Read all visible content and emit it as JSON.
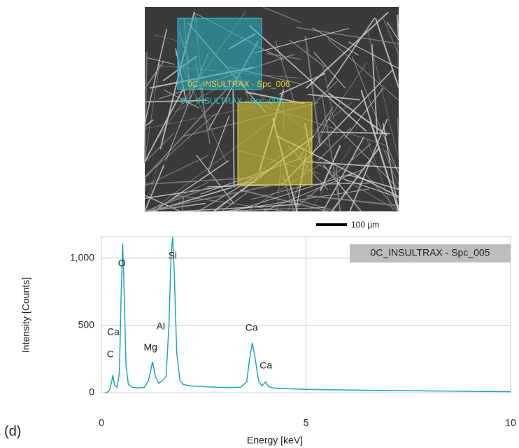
{
  "panel_label": "(d)",
  "image": {
    "spot_labels": [
      "0C_INSULTRAX - Spc_006",
      "0C_INSULTRAX - Spc_005"
    ],
    "scale_bar": "100 µm"
  },
  "chart_data": {
    "type": "line",
    "xlabel": "Energy [keV]",
    "ylabel": "Intensity [Counts]",
    "legend_box": "0C_INSULTRAX - Spc_005",
    "xlim": [
      0,
      10
    ],
    "xticks": [
      0,
      5,
      10
    ],
    "ylim": [
      0,
      1160
    ],
    "yticks": [
      0,
      500,
      {
        "value": 1000,
        "label": "1,000"
      }
    ],
    "grid": true,
    "x": [
      0.1,
      0.15,
      0.2,
      0.25,
      0.28,
      0.32,
      0.38,
      0.44,
      0.48,
      0.52,
      0.56,
      0.6,
      0.66,
      0.75,
      0.9,
      1.05,
      1.15,
      1.25,
      1.32,
      1.4,
      1.49,
      1.58,
      1.65,
      1.7,
      1.74,
      1.78,
      1.84,
      1.92,
      2.0,
      2.2,
      2.5,
      2.8,
      3.1,
      3.4,
      3.55,
      3.62,
      3.69,
      3.76,
      3.84,
      3.92,
      4.01,
      4.08,
      4.2,
      4.5,
      5.0,
      5.5,
      6.0,
      6.5,
      7.0,
      7.5,
      8.0,
      8.5,
      9.0,
      9.5,
      10.0
    ],
    "series": [
      {
        "name": "0C_INSULTRAX - Spc_005",
        "color": "#1fa6b5",
        "values": [
          0,
          5,
          20,
          80,
          130,
          60,
          40,
          150,
          700,
          1110,
          700,
          200,
          60,
          40,
          35,
          40,
          90,
          230,
          120,
          70,
          90,
          120,
          500,
          1000,
          1160,
          900,
          300,
          90,
          60,
          50,
          45,
          40,
          38,
          40,
          80,
          250,
          370,
          250,
          90,
          50,
          80,
          45,
          35,
          30,
          25,
          22,
          20,
          18,
          16,
          15,
          13,
          12,
          10,
          9,
          8
        ]
      }
    ],
    "annotations": [
      {
        "text": "O",
        "x": 0.5,
        "y": 958
      },
      {
        "text": "Si",
        "x": 1.74,
        "y": 1015
      },
      {
        "text": "Ca",
        "x": 0.29,
        "y": 448
      },
      {
        "text": "C",
        "x": 0.22,
        "y": 281
      },
      {
        "text": "Mg",
        "x": 1.2,
        "y": 333
      },
      {
        "text": "Al",
        "x": 1.45,
        "y": 490
      },
      {
        "text": "Ca",
        "x": 3.67,
        "y": 479
      },
      {
        "text": "Ca",
        "x": 4.02,
        "y": 198
      }
    ]
  }
}
